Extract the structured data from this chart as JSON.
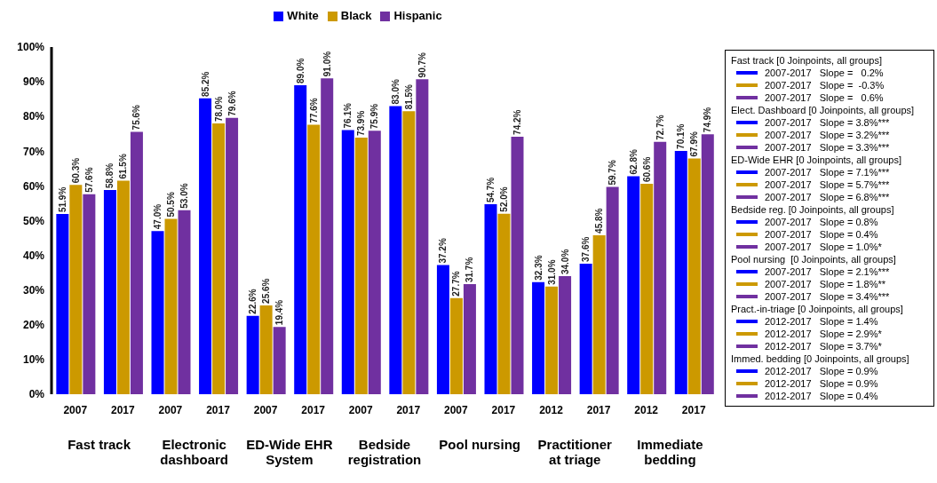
{
  "chart_data": {
    "type": "bar",
    "categories": [
      "2007",
      "2017",
      "2007",
      "2017",
      "2007",
      "2017",
      "2007",
      "2017",
      "2007",
      "2017",
      "2012",
      "2017",
      "2012",
      "2017"
    ],
    "series": [
      {
        "name": "White",
        "color": "#0000ff",
        "values": [
          51.9,
          58.8,
          47.0,
          85.2,
          22.6,
          89.0,
          76.1,
          83.0,
          37.2,
          54.7,
          32.3,
          37.6,
          62.8,
          70.1
        ],
        "value_labels": [
          "51.9%",
          "58.8%",
          "47.0%",
          "85.2%",
          "22.6%",
          "89.0%",
          "76.1%",
          "83.0%",
          "37.2%",
          "54.7%",
          "32.3%",
          "37.6%",
          "62.8%",
          "70.1%"
        ]
      },
      {
        "name": "Black",
        "color": "#cc9900",
        "values": [
          60.3,
          61.5,
          50.5,
          78.0,
          25.6,
          77.6,
          73.9,
          81.5,
          27.7,
          52.0,
          31.0,
          45.8,
          60.6,
          67.9
        ],
        "value_labels": [
          "60.3%",
          "61.5%",
          "50.5%",
          "78.0%",
          "25.6%",
          "77.6%",
          "73.9%",
          "81.5%",
          "27.7%",
          "52.0%",
          "31.0%",
          "45.8%",
          "60.6%",
          "67.9%"
        ]
      },
      {
        "name": "Hispanic",
        "color": "#7030a0",
        "values": [
          57.6,
          75.6,
          53.0,
          79.6,
          19.4,
          91.0,
          75.9,
          90.7,
          31.7,
          74.2,
          34.0,
          59.7,
          72.7,
          74.9
        ],
        "value_labels": [
          "57.6%",
          "75.6%",
          "53.0%",
          "79.6%",
          "19.4%",
          "91.0%",
          "75.9%",
          "90.7%",
          "31.7%",
          "74.2%",
          "34.0%",
          "59.7%",
          "72.7%",
          "74.9%"
        ]
      }
    ],
    "ylim": [
      0,
      100
    ],
    "yticks": [
      {
        "value": 0,
        "label": "0%"
      },
      {
        "value": 10,
        "label": "10%"
      },
      {
        "value": 20,
        "label": "20%"
      },
      {
        "value": 30,
        "label": "30%"
      },
      {
        "value": 40,
        "label": "40%"
      },
      {
        "value": 50,
        "label": "50%"
      },
      {
        "value": 60,
        "label": "60%"
      },
      {
        "value": 70,
        "label": "70%"
      },
      {
        "value": 80,
        "label": "80%"
      },
      {
        "value": 90,
        "label": "90%"
      },
      {
        "value": 100,
        "label": "100%"
      }
    ],
    "grid": false,
    "legend": "top",
    "annotations": [
      "Fast track",
      "Electronic dashboard",
      "ED-Wide EHR System",
      "Bedside registration",
      "Pool nursing",
      "Practitioner at triage",
      "Immediate bedding",
      "Fast track [0 Joinpoints, all groups]",
      "2007-2017   Slope =   0.2%",
      "2007-2017   Slope =  -0.3%",
      "2007-2017   Slope =   0.6%",
      "Elect. Dashboard [0 Joinpoints, all groups]",
      "2007-2017   Slope = 3.8%***",
      "2007-2017   Slope = 3.2%***",
      "2007-2017   Slope = 3.3%***",
      "ED-Wide EHR [0 Joinpoints, all groups]",
      "2007-2017   Slope = 7.1%***",
      "2007-2017   Slope = 5.7%***",
      "2007-2017   Slope = 6.8%***",
      "Bedside reg. [0 Joinpoints, all groups]",
      "2007-2017   Slope = 0.8%",
      "2007-2017   Slope = 0.4%",
      "2007-2017   Slope = 1.0%*",
      "Pool nursing  [0 Joinpoints, all groups]",
      "2007-2017   Slope = 2.1%***",
      "2007-2017   Slope = 1.8%**",
      "2007-2017   Slope = 3.4%***",
      "Pract.-in-triage [0 Joinpoints, all groups]",
      "2012-2017   Slope = 1.4%",
      "2012-2017   Slope = 2.9%*",
      "2012-2017   Slope = 3.7%*",
      "Immed. bedding [0 Joinpoints, all groups]",
      "2012-2017   Slope = 0.9%",
      "2012-2017   Slope = 0.9%",
      "2012-2017   Slope = 0.4%"
    ]
  }
}
